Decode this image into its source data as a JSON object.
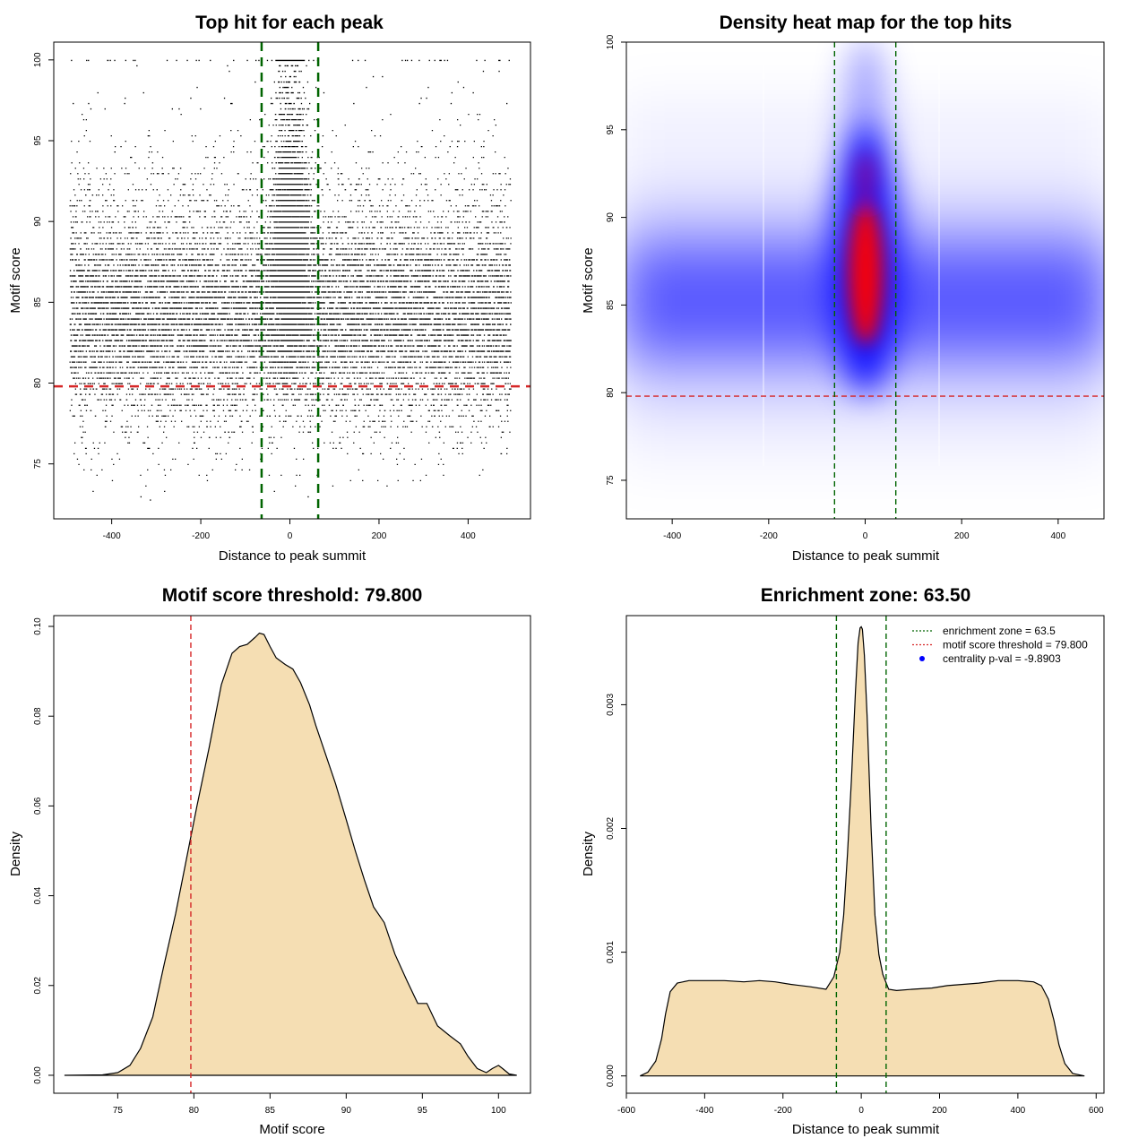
{
  "colors": {
    "threshold": "#d62728",
    "zone": "#006400",
    "fill": "#f5deb3",
    "points": "#000000",
    "heat_low": "#0000ff",
    "heat_high": "#ff0000",
    "legend_dot": "#0000ff"
  },
  "chart_data": [
    {
      "id": "p1",
      "type": "scatter",
      "title": "Top hit for each peak",
      "xlabel": "Distance to peak summit",
      "ylabel": "Motif score",
      "xlim": [
        -530,
        540
      ],
      "ylim": [
        71.6,
        101.1
      ],
      "xticks": [
        -400,
        -200,
        0,
        200,
        400
      ],
      "yticks": [
        75,
        80,
        85,
        90,
        95,
        100
      ],
      "xtick_labels": [
        "-400",
        "-200",
        "0",
        "200",
        "400"
      ],
      "ytick_labels": [
        "75",
        "80",
        "85",
        "90",
        "95",
        "100"
      ],
      "threshold": 79.8,
      "zone": 63.5,
      "point_summary": {
        "x_range": [
          -495,
          495
        ],
        "background_y_mode": 84,
        "central_y_mode": 87.5,
        "y_range": [
          72.8,
          100
        ]
      }
    },
    {
      "id": "p2",
      "type": "heatmap",
      "title": "Density heat map for the top hits",
      "xlabel": "Distance to peak summit",
      "ylabel": "Motif score",
      "xlim": [
        -495,
        495
      ],
      "ylim": [
        72.8,
        100
      ],
      "xticks": [
        -400,
        -200,
        0,
        200,
        400
      ],
      "yticks": [
        75,
        80,
        85,
        90,
        95,
        100
      ],
      "xtick_labels": [
        "-400",
        "-200",
        "0",
        "200",
        "400"
      ],
      "ytick_labels": [
        "75",
        "80",
        "85",
        "90",
        "95",
        "100"
      ],
      "threshold": 79.8,
      "zone": 63.5,
      "density_summary": {
        "peak_x": 0,
        "peak_y": 87.5,
        "background_y": 84
      }
    },
    {
      "id": "p3",
      "type": "area",
      "title": "Motif score threshold: 79.800",
      "xlabel": "Motif score",
      "ylabel": "Density",
      "xlim": [
        70.8,
        102.1
      ],
      "ylim": [
        -0.004,
        0.1024
      ],
      "xticks": [
        75,
        80,
        85,
        90,
        95,
        100
      ],
      "yticks": [
        0.0,
        0.02,
        0.04,
        0.06,
        0.08,
        0.1
      ],
      "xtick_labels": [
        "75",
        "80",
        "85",
        "90",
        "95",
        "100"
      ],
      "ytick_labels": [
        "0.00",
        "0.02",
        "0.04",
        "0.06",
        "0.08",
        "0.10"
      ],
      "threshold": 79.8,
      "x": [
        71.5,
        74,
        75,
        75.8,
        76.5,
        77.3,
        78,
        78.8,
        79.5,
        80.2,
        81,
        81.8,
        82.5,
        83,
        83.5,
        84,
        84.3,
        84.6,
        85,
        85.4,
        86,
        86.5,
        87,
        87.6,
        88,
        88.6,
        89.3,
        90,
        90.6,
        91.2,
        91.8,
        92.5,
        93.2,
        94,
        94.7,
        95.3,
        96,
        96.8,
        97.5,
        98,
        98.6,
        99.2,
        99.6,
        100,
        100.3,
        100.7,
        101.2
      ],
      "y": [
        0.0,
        0.0001,
        0.0006,
        0.0022,
        0.006,
        0.013,
        0.024,
        0.036,
        0.048,
        0.06,
        0.073,
        0.087,
        0.094,
        0.0955,
        0.096,
        0.0975,
        0.0985,
        0.0982,
        0.0955,
        0.093,
        0.0915,
        0.0905,
        0.0875,
        0.0825,
        0.078,
        0.072,
        0.065,
        0.057,
        0.05,
        0.0435,
        0.0375,
        0.034,
        0.027,
        0.021,
        0.016,
        0.016,
        0.011,
        0.0088,
        0.007,
        0.0042,
        0.0015,
        0.0006,
        0.0015,
        0.0022,
        0.0014,
        0.0003,
        0.0
      ]
    },
    {
      "id": "p4",
      "type": "area",
      "title": "Enrichment zone: 63.50",
      "xlabel": "Distance to peak summit",
      "ylabel": "Density",
      "xlim": [
        -600,
        620
      ],
      "ylim": [
        -0.00014,
        0.00372
      ],
      "xticks": [
        -600,
        -400,
        -200,
        0,
        200,
        400,
        600
      ],
      "yticks": [
        0.0,
        0.001,
        0.002,
        0.003
      ],
      "xtick_labels": [
        "-600",
        "-400",
        "-200",
        "0",
        "200",
        "400",
        "600"
      ],
      "ytick_labels": [
        "0.000",
        "0.001",
        "0.002",
        "0.003"
      ],
      "zone": 63.5,
      "x": [
        -565,
        -545,
        -525,
        -510,
        -500,
        -488,
        -470,
        -440,
        -400,
        -350,
        -300,
        -260,
        -220,
        -180,
        -130,
        -90,
        -70,
        -55,
        -45,
        -35,
        -25,
        -15,
        -8,
        -3,
        0,
        3,
        8,
        15,
        25,
        35,
        45,
        55,
        70,
        90,
        130,
        180,
        220,
        260,
        300,
        350,
        400,
        440,
        460,
        478,
        492,
        505,
        520,
        540,
        570
      ],
      "y": [
        0.0,
        3e-05,
        0.00012,
        0.0003,
        0.0005,
        0.00068,
        0.00075,
        0.00077,
        0.00077,
        0.00077,
        0.00076,
        0.00077,
        0.00076,
        0.00074,
        0.00072,
        0.0007,
        0.0008,
        0.001,
        0.0013,
        0.0018,
        0.0024,
        0.0031,
        0.0035,
        0.00362,
        0.00363,
        0.00361,
        0.0034,
        0.0029,
        0.002,
        0.0013,
        0.00098,
        0.00082,
        0.0007,
        0.00069,
        0.0007,
        0.00071,
        0.00073,
        0.00074,
        0.00075,
        0.00077,
        0.00077,
        0.00076,
        0.00073,
        0.00062,
        0.00045,
        0.00025,
        0.0001,
        2e-05,
        0.0
      ],
      "legend": [
        {
          "label": "enrichment zone = 63.5",
          "symbol": "dotted-line",
          "color": "#006400"
        },
        {
          "label": "motif score threshold = 79.800",
          "symbol": "dotted-line",
          "color": "#d62728"
        },
        {
          "label": "centrality p-val = -9.8903",
          "symbol": "dot",
          "color": "#0000ff"
        }
      ],
      "legend_position": "top-right"
    }
  ]
}
